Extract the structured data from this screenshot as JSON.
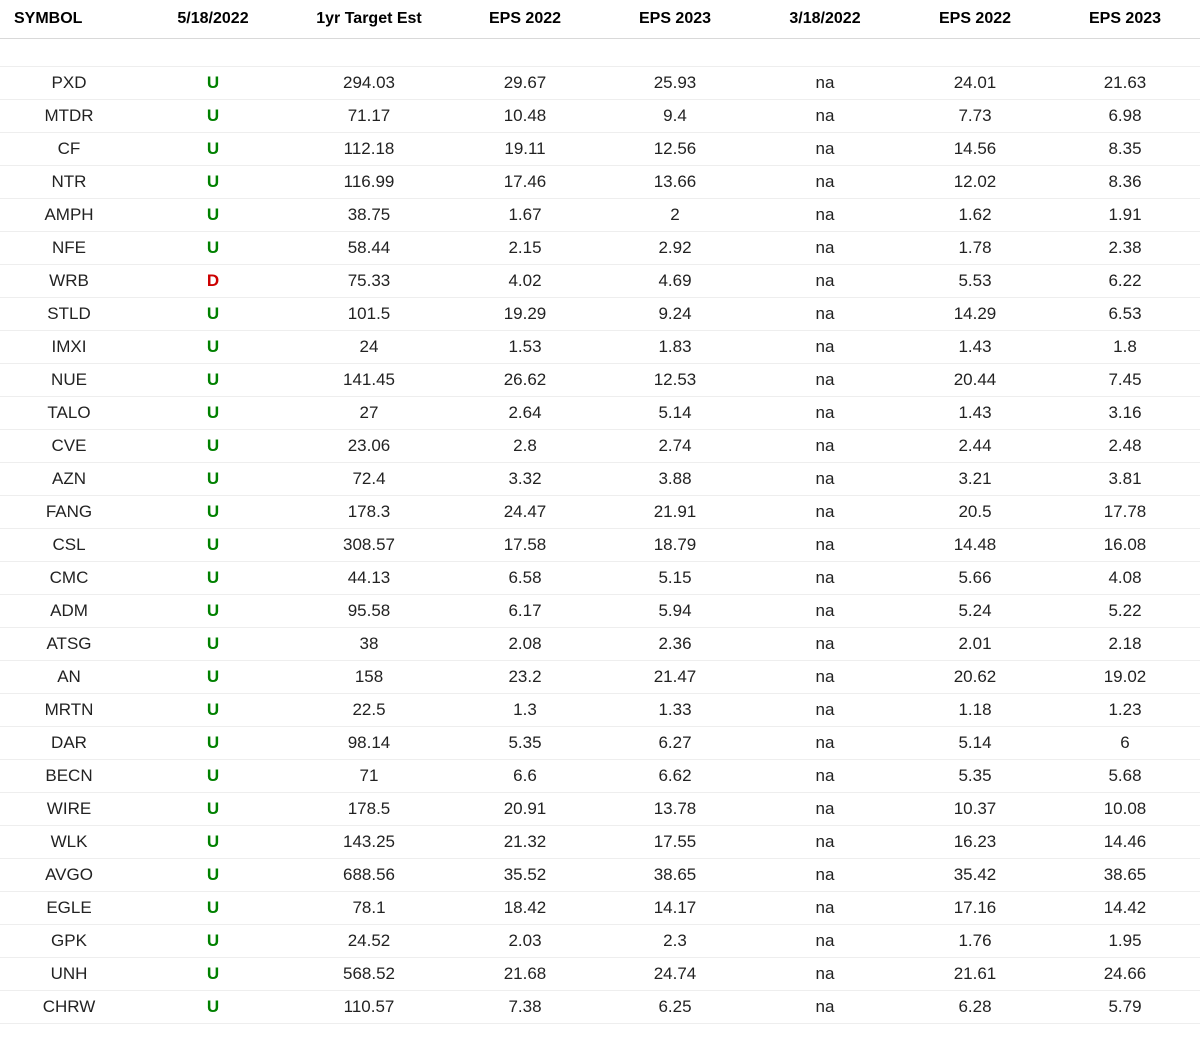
{
  "colors": {
    "up": "#008000",
    "down": "#cc0000",
    "text": "#222222",
    "header_text": "#000000",
    "row_border": "#eeeeee",
    "header_border": "#d9d9d9",
    "background": "#ffffff"
  },
  "columns": [
    "SYMBOL",
    "5/18/2022",
    "1yr Target Est",
    "EPS 2022",
    "EPS 2023",
    "3/18/2022",
    "EPS 2022",
    "EPS 2023"
  ],
  "rows": [
    {
      "symbol": "PXD",
      "rating1": "U",
      "target": "294.03",
      "eps22a": "29.67",
      "eps23a": "25.93",
      "rating2": "na",
      "eps22b": "24.01",
      "eps23b": "21.63"
    },
    {
      "symbol": "MTDR",
      "rating1": "U",
      "target": "71.17",
      "eps22a": "10.48",
      "eps23a": "9.4",
      "rating2": "na",
      "eps22b": "7.73",
      "eps23b": "6.98"
    },
    {
      "symbol": "CF",
      "rating1": "U",
      "target": "112.18",
      "eps22a": "19.11",
      "eps23a": "12.56",
      "rating2": "na",
      "eps22b": "14.56",
      "eps23b": "8.35"
    },
    {
      "symbol": "NTR",
      "rating1": "U",
      "target": "116.99",
      "eps22a": "17.46",
      "eps23a": "13.66",
      "rating2": "na",
      "eps22b": "12.02",
      "eps23b": "8.36"
    },
    {
      "symbol": "AMPH",
      "rating1": "U",
      "target": "38.75",
      "eps22a": "1.67",
      "eps23a": "2",
      "rating2": "na",
      "eps22b": "1.62",
      "eps23b": "1.91"
    },
    {
      "symbol": "NFE",
      "rating1": "U",
      "target": "58.44",
      "eps22a": "2.15",
      "eps23a": "2.92",
      "rating2": "na",
      "eps22b": "1.78",
      "eps23b": "2.38"
    },
    {
      "symbol": "WRB",
      "rating1": "D",
      "target": "75.33",
      "eps22a": "4.02",
      "eps23a": "4.69",
      "rating2": "na",
      "eps22b": "5.53",
      "eps23b": "6.22"
    },
    {
      "symbol": "STLD",
      "rating1": "U",
      "target": "101.5",
      "eps22a": "19.29",
      "eps23a": "9.24",
      "rating2": "na",
      "eps22b": "14.29",
      "eps23b": "6.53"
    },
    {
      "symbol": "IMXI",
      "rating1": "U",
      "target": "24",
      "eps22a": "1.53",
      "eps23a": "1.83",
      "rating2": "na",
      "eps22b": "1.43",
      "eps23b": "1.8"
    },
    {
      "symbol": "NUE",
      "rating1": "U",
      "target": "141.45",
      "eps22a": "26.62",
      "eps23a": "12.53",
      "rating2": "na",
      "eps22b": "20.44",
      "eps23b": "7.45"
    },
    {
      "symbol": "TALO",
      "rating1": "U",
      "target": "27",
      "eps22a": "2.64",
      "eps23a": "5.14",
      "rating2": "na",
      "eps22b": "1.43",
      "eps23b": "3.16"
    },
    {
      "symbol": "CVE",
      "rating1": "U",
      "target": "23.06",
      "eps22a": "2.8",
      "eps23a": "2.74",
      "rating2": "na",
      "eps22b": "2.44",
      "eps23b": "2.48"
    },
    {
      "symbol": "AZN",
      "rating1": "U",
      "target": "72.4",
      "eps22a": "3.32",
      "eps23a": "3.88",
      "rating2": "na",
      "eps22b": "3.21",
      "eps23b": "3.81"
    },
    {
      "symbol": "FANG",
      "rating1": "U",
      "target": "178.3",
      "eps22a": "24.47",
      "eps23a": "21.91",
      "rating2": "na",
      "eps22b": "20.5",
      "eps23b": "17.78"
    },
    {
      "symbol": "CSL",
      "rating1": "U",
      "target": "308.57",
      "eps22a": "17.58",
      "eps23a": "18.79",
      "rating2": "na",
      "eps22b": "14.48",
      "eps23b": "16.08"
    },
    {
      "symbol": "CMC",
      "rating1": "U",
      "target": "44.13",
      "eps22a": "6.58",
      "eps23a": "5.15",
      "rating2": "na",
      "eps22b": "5.66",
      "eps23b": "4.08"
    },
    {
      "symbol": "ADM",
      "rating1": "U",
      "target": "95.58",
      "eps22a": "6.17",
      "eps23a": "5.94",
      "rating2": "na",
      "eps22b": "5.24",
      "eps23b": "5.22"
    },
    {
      "symbol": "ATSG",
      "rating1": "U",
      "target": "38",
      "eps22a": "2.08",
      "eps23a": "2.36",
      "rating2": "na",
      "eps22b": "2.01",
      "eps23b": "2.18"
    },
    {
      "symbol": "AN",
      "rating1": "U",
      "target": "158",
      "eps22a": "23.2",
      "eps23a": "21.47",
      "rating2": "na",
      "eps22b": "20.62",
      "eps23b": "19.02"
    },
    {
      "symbol": "MRTN",
      "rating1": "U",
      "target": "22.5",
      "eps22a": "1.3",
      "eps23a": "1.33",
      "rating2": "na",
      "eps22b": "1.18",
      "eps23b": "1.23"
    },
    {
      "symbol": "DAR",
      "rating1": "U",
      "target": "98.14",
      "eps22a": "5.35",
      "eps23a": "6.27",
      "rating2": "na",
      "eps22b": "5.14",
      "eps23b": "6"
    },
    {
      "symbol": "BECN",
      "rating1": "U",
      "target": "71",
      "eps22a": "6.6",
      "eps23a": "6.62",
      "rating2": "na",
      "eps22b": "5.35",
      "eps23b": "5.68"
    },
    {
      "symbol": "WIRE",
      "rating1": "U",
      "target": "178.5",
      "eps22a": "20.91",
      "eps23a": "13.78",
      "rating2": "na",
      "eps22b": "10.37",
      "eps23b": "10.08"
    },
    {
      "symbol": "WLK",
      "rating1": "U",
      "target": "143.25",
      "eps22a": "21.32",
      "eps23a": "17.55",
      "rating2": "na",
      "eps22b": "16.23",
      "eps23b": "14.46"
    },
    {
      "symbol": "AVGO",
      "rating1": "U",
      "target": "688.56",
      "eps22a": "35.52",
      "eps23a": "38.65",
      "rating2": "na",
      "eps22b": "35.42",
      "eps23b": "38.65"
    },
    {
      "symbol": "EGLE",
      "rating1": "U",
      "target": "78.1",
      "eps22a": "18.42",
      "eps23a": "14.17",
      "rating2": "na",
      "eps22b": "17.16",
      "eps23b": "14.42"
    },
    {
      "symbol": "GPK",
      "rating1": "U",
      "target": "24.52",
      "eps22a": "2.03",
      "eps23a": "2.3",
      "rating2": "na",
      "eps22b": "1.76",
      "eps23b": "1.95"
    },
    {
      "symbol": "UNH",
      "rating1": "U",
      "target": "568.52",
      "eps22a": "21.68",
      "eps23a": "24.74",
      "rating2": "na",
      "eps22b": "21.61",
      "eps23b": "24.66"
    },
    {
      "symbol": "CHRW",
      "rating1": "U",
      "target": "110.57",
      "eps22a": "7.38",
      "eps23a": "6.25",
      "rating2": "na",
      "eps22b": "6.28",
      "eps23b": "5.79"
    }
  ]
}
